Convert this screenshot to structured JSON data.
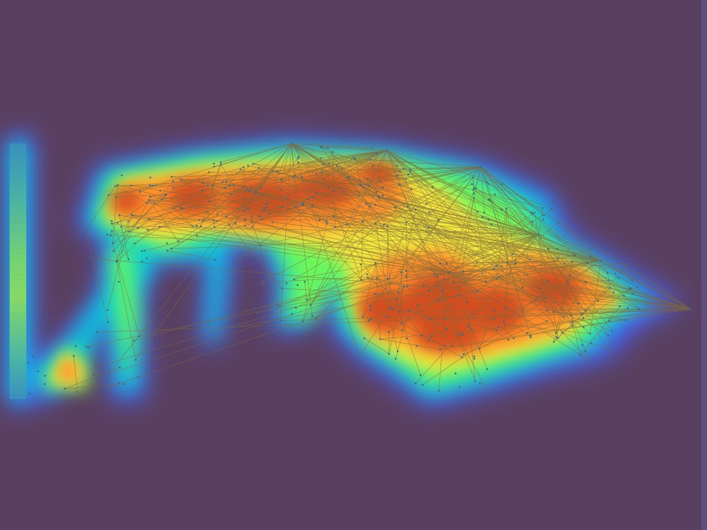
{
  "diagram": {
    "type": "graph-heatmap-overlay",
    "colors": {
      "background": "#5a4060",
      "edge": "#7a7a4a",
      "node": "#3a6a7a",
      "heat_low": "#4a64ff",
      "heat_mid1": "#00d6d6",
      "heat_mid2": "#7cff4a",
      "heat_mid3": "#ffe23a",
      "heat_high": "#ff8a2a",
      "heat_peak": "#c8381a"
    },
    "legend_bar": {
      "present": true,
      "orientation": "vertical",
      "colors": [
        "#3aa0c8",
        "#4ec0a0",
        "#6ad878",
        "#8ce060",
        "#5ac8a0",
        "#3aa0c8"
      ]
    }
  }
}
